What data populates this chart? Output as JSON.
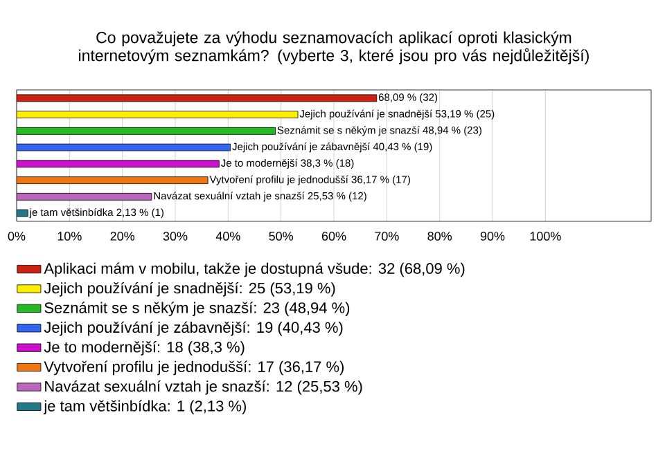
{
  "chart_data": {
    "type": "bar",
    "orientation": "horizontal",
    "title": "Co považujete za výhodu seznamovacích aplikací oproti klasickým internetovým seznamkám? (vyberte 3, které jsou pro vás nejdůležitější)",
    "categories": [
      null,
      null,
      null,
      null,
      null,
      null,
      null,
      null
    ],
    "series": [
      {
        "name": "Aplikaci mám v mobilu, takže je dostupná všude: 32 (68,09 %)",
        "color": "#cc2211",
        "values": [
          68.09,
          null,
          null,
          null,
          null,
          null,
          null,
          null
        ],
        "value_labels": [
          "68,09 % (32)",
          null,
          null,
          null,
          null,
          null,
          null,
          null
        ]
      },
      {
        "name": "Jejich používání je snadnější: 25 (53,19 %)",
        "color": "#ffee00",
        "values": [
          null,
          53.19,
          null,
          null,
          null,
          null,
          null,
          null
        ],
        "value_labels": [
          null,
          "Jejich používání je snadnější 53,19 % (25)",
          null,
          null,
          null,
          null,
          null,
          null
        ]
      },
      {
        "name": "Seznámit se s někým je snazší: 23 (48,94 %)",
        "color": "#22bb22",
        "values": [
          null,
          null,
          48.94,
          null,
          null,
          null,
          null,
          null
        ],
        "value_labels": [
          null,
          null,
          "Seznámit se s někým je snazší 48,94 % (23)",
          null,
          null,
          null,
          null,
          null
        ]
      },
      {
        "name": "Jejich používání je zábavnější: 19 (40,43 %)",
        "color": "#3366ee",
        "values": [
          null,
          null,
          null,
          40.43,
          null,
          null,
          null,
          null
        ],
        "value_labels": [
          null,
          null,
          null,
          "Jejich používání je zábavnější 40,43 % (19)",
          null,
          null,
          null,
          null
        ]
      },
      {
        "name": "Je to modernější: 18 (38,3 %)",
        "color": "#cc11cc",
        "values": [
          null,
          null,
          null,
          null,
          38.3,
          null,
          null,
          null
        ],
        "value_labels": [
          null,
          null,
          null,
          null,
          "Je to modernější 38,3 % (18)",
          null,
          null,
          null
        ]
      },
      {
        "name": "Vytvoření profilu je jednodušší: 17 (36,17 %)",
        "color": "#ee7711",
        "values": [
          null,
          null,
          null,
          null,
          null,
          36.17,
          null,
          null
        ],
        "value_labels": [
          null,
          null,
          null,
          null,
          null,
          "Vytvoření profilu je jednodušší 36,17 % (17)",
          null,
          null
        ]
      },
      {
        "name": "Navázat sexuální vztah je snazší: 12 (25,53 %)",
        "color": "#bb66bb",
        "values": [
          null,
          null,
          null,
          null,
          null,
          null,
          25.53,
          null
        ],
        "value_labels": [
          null,
          null,
          null,
          null,
          null,
          null,
          "Navázat sexuální vztah je snazší 25,53 % (12)",
          null
        ]
      },
      {
        "name": "je tam většinbídka: 1 (2,13 %)",
        "color": "#227788",
        "values": [
          null,
          null,
          null,
          null,
          null,
          null,
          null,
          2.13
        ],
        "value_labels": [
          null,
          null,
          null,
          null,
          null,
          null,
          null,
          "je tam většinbídka 2,13 % (1)"
        ]
      }
    ],
    "xlim": [
      0,
      120
    ],
    "xticks": [
      {
        "value": 0,
        "label": "0%"
      },
      {
        "value": 10,
        "label": "10%"
      },
      {
        "value": 20,
        "label": "20%"
      },
      {
        "value": 30,
        "label": "30%"
      },
      {
        "value": 40,
        "label": "40%"
      },
      {
        "value": 50,
        "label": "50%"
      },
      {
        "value": 60,
        "label": "60%"
      },
      {
        "value": 70,
        "label": "70%"
      },
      {
        "value": 80,
        "label": "80%"
      },
      {
        "value": 90,
        "label": "90%"
      },
      {
        "value": 100,
        "label": "100%"
      }
    ],
    "grid": "x",
    "legend": "bottom"
  }
}
